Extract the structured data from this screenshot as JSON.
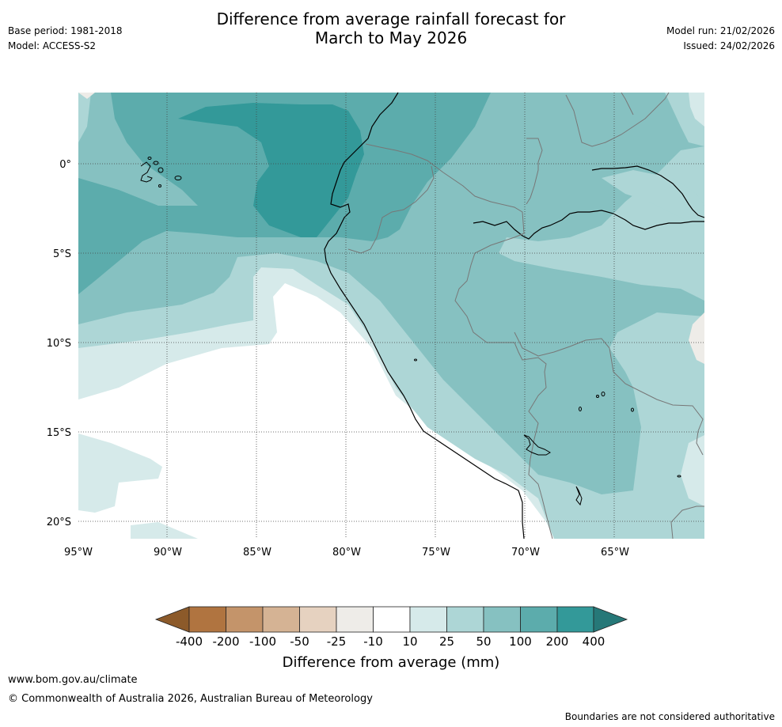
{
  "header": {
    "title_line1": "Difference from average rainfall forecast for",
    "title_line2": "March to May 2026",
    "base_period": "Base period: 1981-2018",
    "model": "Model: ACCESS-S2",
    "model_run": "Model run: 21/02/2026",
    "issued": "Issued: 24/02/2026"
  },
  "map": {
    "lon_labels": [
      "95°W",
      "90°W",
      "85°W",
      "80°W",
      "75°W",
      "70°W",
      "65°W"
    ],
    "lat_labels": [
      "0°",
      "5°S",
      "10°S",
      "15°S",
      "20°S"
    ]
  },
  "legend": {
    "title": "Difference from average (mm)",
    "tick_labels": [
      "-400",
      "-200",
      "-100",
      "-50",
      "-25",
      "-10",
      "10",
      "25",
      "50",
      "100",
      "200",
      "400"
    ],
    "colors": {
      "lt_neg400": "#8c5a2a",
      "neg400_neg200": "#b07440",
      "neg200_neg100": "#c4946a",
      "neg100_neg50": "#d5b394",
      "neg50_neg25": "#e6d2c0",
      "neg25_neg10": "#eeece8",
      "neg10_10": "#ffffff",
      "b10_25": "#d6eaea",
      "b25_50": "#add6d6",
      "b50_100": "#86c1c1",
      "b100_200": "#5cacac",
      "b200_400": "#339999",
      "gt_400": "#267878"
    }
  },
  "footer": {
    "url": "www.bom.gov.au/climate",
    "copyright": "© Commonwealth of Australia 2026, Australian Bureau of Meteorology",
    "disclaimer": "Boundaries are not considered authoritative"
  }
}
